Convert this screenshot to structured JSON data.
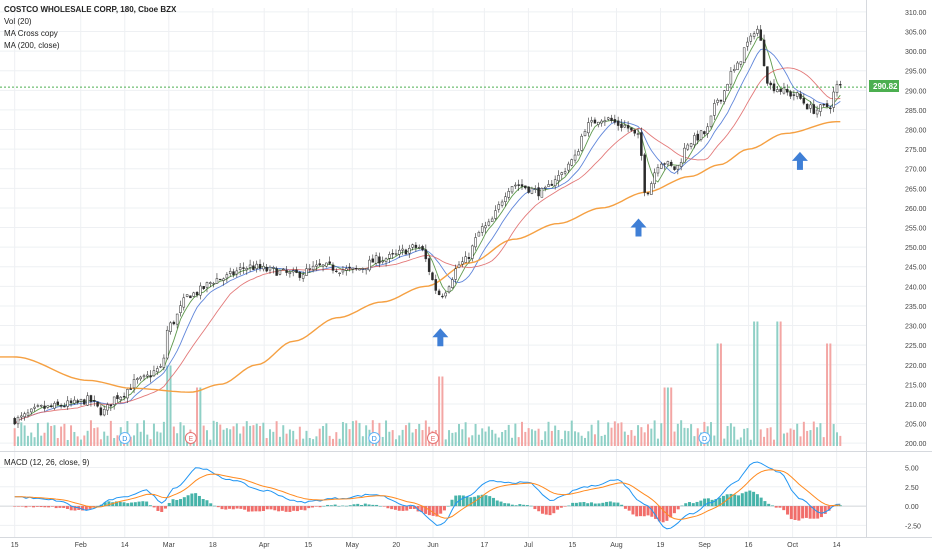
{
  "legend": {
    "symbol": "COSTCO WHOLESALE CORP, 180, Cboe BZX",
    "vol": "Vol (20)",
    "ma_cross": "MA Cross copy",
    "ma200": "MA (200, close)"
  },
  "macd_label": "MACD (12, 26, close, 9)",
  "price_tag": "290.82",
  "colors": {
    "up": "#26a69a",
    "down": "#ef5350",
    "vol_up": "#8fd0c6",
    "vol_down": "#f3a6a4",
    "ma200": "#f5a042",
    "ma_fast": "#4e8f3a",
    "ma_mid": "#4f79d6",
    "ma_slow": "#e06a6a",
    "macd_line": "#2196f3",
    "signal_line": "#ff8a1f",
    "arrow": "#3f7fd6",
    "price_line": "#4caf50"
  },
  "chart_data": {
    "type": "candlestick",
    "price_axis": {
      "min": 200,
      "max": 310,
      "ticks": [
        "310.00",
        "305.00",
        "300.00",
        "295.00",
        "290.00",
        "285.00",
        "280.00",
        "275.00",
        "270.00",
        "265.00",
        "260.00",
        "255.00",
        "250.00",
        "245.00",
        "240.00",
        "235.00",
        "230.00",
        "225.00",
        "220.00",
        "215.00",
        "210.00",
        "205.00",
        "200.00"
      ]
    },
    "macd_axis": {
      "min": -4.0,
      "max": 7.0,
      "ticks": [
        "5.00",
        "2.50",
        "0.00",
        "-2.50"
      ]
    },
    "x_axis": {
      "labels": [
        "15",
        "Feb",
        "14",
        "Mar",
        "18",
        "Apr",
        "15",
        "May",
        "20",
        "Jun",
        "17",
        "Jul",
        "15",
        "Aug",
        "19",
        "Sep",
        "16",
        "Oct",
        "14"
      ],
      "label_positions": [
        0.0,
        0.9,
        1.5,
        2.1,
        2.7,
        3.4,
        4.0,
        4.6,
        5.2,
        5.7,
        6.4,
        7.0,
        7.6,
        8.2,
        8.8,
        9.4,
        10.0,
        10.6,
        11.2
      ]
    },
    "price_keypoints": [
      [
        0.0,
        206
      ],
      [
        0.4,
        209
      ],
      [
        0.8,
        210
      ],
      [
        1.0,
        211
      ],
      [
        1.2,
        208
      ],
      [
        1.4,
        212
      ],
      [
        1.7,
        216
      ],
      [
        2.0,
        219
      ],
      [
        2.1,
        230
      ],
      [
        2.4,
        238
      ],
      [
        2.8,
        242
      ],
      [
        3.2,
        245
      ],
      [
        3.5,
        244
      ],
      [
        3.8,
        243
      ],
      [
        4.2,
        245
      ],
      [
        4.6,
        244
      ],
      [
        5.0,
        247
      ],
      [
        5.5,
        250
      ],
      [
        5.8,
        238
      ],
      [
        6.1,
        246
      ],
      [
        6.4,
        255
      ],
      [
        6.8,
        266
      ],
      [
        7.2,
        264
      ],
      [
        7.4,
        268
      ],
      [
        7.6,
        272
      ],
      [
        7.8,
        281
      ],
      [
        8.0,
        283
      ],
      [
        8.3,
        281
      ],
      [
        8.5,
        278
      ],
      [
        8.6,
        264
      ],
      [
        8.8,
        272
      ],
      [
        9.0,
        270
      ],
      [
        9.2,
        277
      ],
      [
        9.4,
        279
      ],
      [
        9.6,
        288
      ],
      [
        9.8,
        295
      ],
      [
        10.0,
        302
      ],
      [
        10.1,
        306
      ],
      [
        10.3,
        291
      ],
      [
        10.6,
        289
      ],
      [
        10.9,
        285
      ],
      [
        11.1,
        286
      ],
      [
        11.2,
        291
      ]
    ],
    "ma200_keypoints": [
      [
        0.0,
        222
      ],
      [
        1.0,
        216
      ],
      [
        1.6,
        214
      ],
      [
        2.4,
        213
      ],
      [
        2.8,
        215
      ],
      [
        3.3,
        220
      ],
      [
        3.8,
        226
      ],
      [
        4.4,
        232
      ],
      [
        5.0,
        236
      ],
      [
        5.6,
        240
      ],
      [
        6.2,
        246
      ],
      [
        6.8,
        252
      ],
      [
        7.4,
        256
      ],
      [
        8.0,
        260
      ],
      [
        8.6,
        264
      ],
      [
        9.2,
        268
      ],
      [
        9.6,
        271
      ],
      [
        10.0,
        275
      ],
      [
        10.5,
        279
      ],
      [
        11.2,
        282
      ]
    ],
    "volume_spikes": [
      [
        2.1,
        0.55
      ],
      [
        2.5,
        0.35
      ],
      [
        5.8,
        0.45
      ],
      [
        8.9,
        0.35
      ],
      [
        9.6,
        0.75
      ],
      [
        10.1,
        0.95
      ],
      [
        10.4,
        0.95
      ],
      [
        11.1,
        0.75
      ]
    ],
    "macd_keypoints": [
      [
        0.0,
        1.2
      ],
      [
        0.5,
        0.8
      ],
      [
        1.0,
        -0.5
      ],
      [
        1.4,
        1.0
      ],
      [
        1.8,
        2.0
      ],
      [
        2.0,
        0.5
      ],
      [
        2.2,
        2.5
      ],
      [
        2.5,
        5.0
      ],
      [
        2.9,
        3.5
      ],
      [
        3.4,
        2.0
      ],
      [
        3.9,
        0.5
      ],
      [
        4.4,
        1.0
      ],
      [
        4.9,
        1.5
      ],
      [
        5.4,
        0.0
      ],
      [
        5.8,
        -2.5
      ],
      [
        6.1,
        1.0
      ],
      [
        6.5,
        3.2
      ],
      [
        7.0,
        3.0
      ],
      [
        7.3,
        0.8
      ],
      [
        7.8,
        2.5
      ],
      [
        8.2,
        3.4
      ],
      [
        8.6,
        0.2
      ],
      [
        8.9,
        -3.0
      ],
      [
        9.2,
        -1.0
      ],
      [
        9.5,
        0.5
      ],
      [
        9.8,
        3.0
      ],
      [
        10.1,
        5.8
      ],
      [
        10.4,
        4.5
      ],
      [
        10.7,
        1.0
      ],
      [
        11.0,
        -1.0
      ],
      [
        11.2,
        0.3
      ]
    ],
    "events": [
      {
        "x": 1.5,
        "label": "D"
      },
      {
        "x": 2.4,
        "label": "E"
      },
      {
        "x": 4.9,
        "label": "D"
      },
      {
        "x": 5.7,
        "label": "E"
      },
      {
        "x": 9.4,
        "label": "D"
      }
    ],
    "arrows": [
      [
        5.8,
        227
      ],
      [
        8.5,
        255
      ],
      [
        10.7,
        272
      ]
    ],
    "last_price": 290.82
  }
}
